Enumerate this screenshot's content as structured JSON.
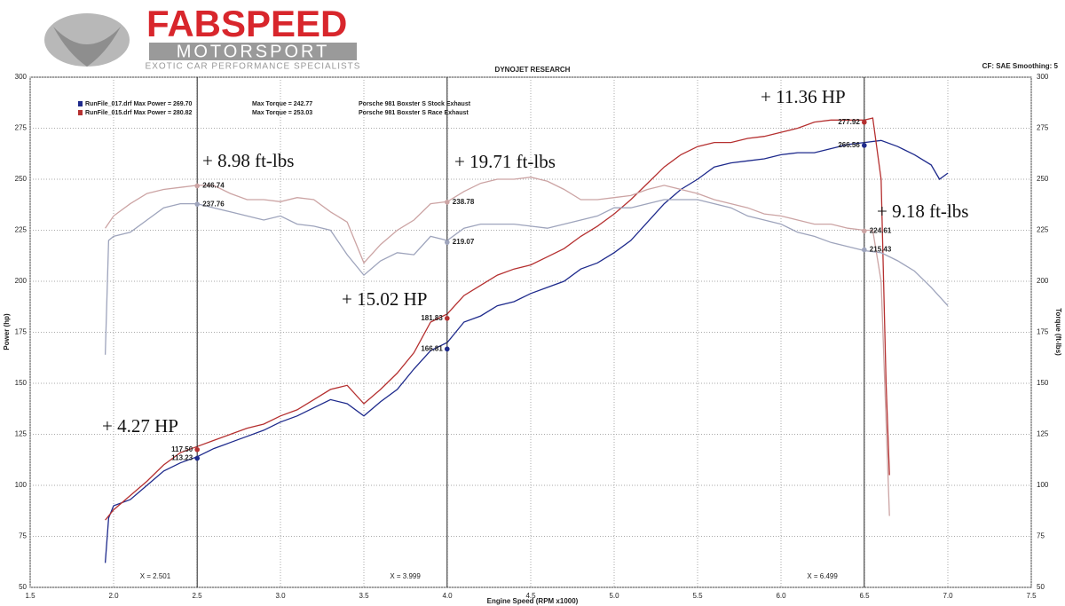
{
  "header": {
    "brand": "FABSPEED",
    "sub": "MOTORSPORT",
    "tagline": "EXOTIC CAR PERFORMANCE SPECIALISTS"
  },
  "chart_data": {
    "type": "line",
    "title": "DYNOJET RESEARCH",
    "settings_text": "CF: SAE  Smoothing: 5",
    "x_label": "Engine Speed (RPM x1000)",
    "y_label": "Power (hp)",
    "y2_label": "Torque (ft-lbs)",
    "xlim": [
      1.5,
      7.5
    ],
    "ylim": [
      50,
      300
    ],
    "y2lim": [
      50,
      300
    ],
    "grid": true,
    "xticks": [
      1.5,
      {
        "value": 2,
        "label": "2.0"
      },
      2.5,
      {
        "value": 3,
        "label": "3.0"
      },
      3.5,
      {
        "value": 4,
        "label": "4.0"
      },
      4.5,
      {
        "value": 5,
        "label": "5.0"
      },
      5.5,
      {
        "value": 6,
        "label": "6.0"
      },
      6.5,
      {
        "value": 7,
        "label": "7.0"
      },
      7.5
    ],
    "yticks": [
      50,
      75,
      100,
      125,
      150,
      175,
      200,
      225,
      250,
      275,
      300
    ],
    "y2ticks": [
      50,
      75,
      100,
      125,
      150,
      175,
      200,
      225,
      250,
      275,
      300
    ],
    "legend": [
      [
        "RunFile_017.drf Max Power = 269.70",
        "Max Torque = 242.77",
        "Porsche 981 Boxster S Stock Exhaust"
      ],
      [
        "RunFile_015.drf Max Power = 280.82",
        "Max Torque = 253.03",
        "Porsche 981 Boxster S Race Exhaust"
      ]
    ],
    "series": [
      {
        "color": "#1e2a8c",
        "x": [
          1.95,
          1.97,
          2.0,
          2.1,
          2.2,
          2.3,
          2.4,
          2.5,
          2.6,
          2.7,
          2.8,
          2.9,
          3.0,
          3.1,
          3.2,
          3.3,
          3.4,
          3.5,
          3.6,
          3.7,
          3.8,
          3.9,
          4.0,
          4.1,
          4.2,
          4.3,
          4.4,
          4.5,
          4.6,
          4.7,
          4.8,
          4.9,
          5.0,
          5.1,
          5.2,
          5.3,
          5.4,
          5.5,
          5.6,
          5.7,
          5.8,
          5.9,
          6.0,
          6.1,
          6.2,
          6.3,
          6.4,
          6.5,
          6.6,
          6.7,
          6.8,
          6.9,
          6.95,
          7.0
        ],
        "values": [
          62,
          84,
          90,
          93,
          100,
          107,
          111,
          114,
          118,
          121,
          124,
          127,
          131,
          134,
          138,
          142,
          140,
          134,
          141,
          147,
          157,
          166,
          170,
          180,
          183,
          188,
          190,
          194,
          197,
          200,
          206,
          209,
          214,
          220,
          229,
          238,
          245,
          250,
          256,
          258,
          259,
          260,
          262,
          263,
          263,
          265,
          267,
          268,
          269,
          266,
          262,
          257,
          250,
          253
        ]
      },
      {
        "color": "#b53030",
        "x": [
          1.95,
          2.0,
          2.1,
          2.2,
          2.3,
          2.4,
          2.5,
          2.6,
          2.7,
          2.8,
          2.9,
          3.0,
          3.1,
          3.2,
          3.3,
          3.4,
          3.5,
          3.6,
          3.7,
          3.8,
          3.9,
          4.0,
          4.1,
          4.2,
          4.3,
          4.4,
          4.5,
          4.6,
          4.7,
          4.8,
          4.9,
          5.0,
          5.1,
          5.2,
          5.3,
          5.4,
          5.5,
          5.6,
          5.7,
          5.8,
          5.9,
          6.0,
          6.1,
          6.2,
          6.3,
          6.4,
          6.5,
          6.55,
          6.6,
          6.63,
          6.65
        ],
        "values": [
          83,
          88,
          95,
          102,
          110,
          116,
          119,
          122,
          125,
          128,
          130,
          134,
          137,
          142,
          147,
          149,
          140,
          147,
          155,
          165,
          180,
          184,
          193,
          198,
          203,
          206,
          208,
          212,
          216,
          222,
          227,
          233,
          240,
          248,
          256,
          262,
          266,
          268,
          268,
          270,
          271,
          273,
          275,
          278,
          279,
          279,
          279,
          280,
          250,
          150,
          105
        ]
      },
      {
        "color": "#9ea4bc",
        "axis": "y2",
        "x": [
          1.95,
          1.97,
          2.0,
          2.1,
          2.2,
          2.3,
          2.4,
          2.5,
          2.6,
          2.7,
          2.8,
          2.9,
          3.0,
          3.1,
          3.2,
          3.3,
          3.4,
          3.5,
          3.6,
          3.7,
          3.8,
          3.9,
          4.0,
          4.1,
          4.2,
          4.3,
          4.4,
          4.5,
          4.6,
          4.7,
          4.8,
          4.9,
          5.0,
          5.1,
          5.2,
          5.3,
          5.4,
          5.5,
          5.6,
          5.7,
          5.8,
          5.9,
          6.0,
          6.1,
          6.2,
          6.3,
          6.4,
          6.5,
          6.6,
          6.7,
          6.8,
          6.9,
          7.0
        ],
        "values": [
          164,
          220,
          222,
          224,
          230,
          236,
          238,
          238,
          236,
          234,
          232,
          230,
          232,
          228,
          227,
          225,
          213,
          203,
          210,
          214,
          213,
          222,
          220,
          226,
          228,
          228,
          228,
          227,
          226,
          228,
          230,
          232,
          236,
          236,
          238,
          240,
          240,
          240,
          238,
          236,
          232,
          230,
          228,
          224,
          222,
          219,
          217,
          215,
          214,
          210,
          205,
          197,
          188
        ]
      },
      {
        "color": "#cca4a4",
        "axis": "y2",
        "x": [
          1.95,
          2.0,
          2.1,
          2.2,
          2.3,
          2.4,
          2.5,
          2.6,
          2.7,
          2.8,
          2.9,
          3.0,
          3.1,
          3.2,
          3.3,
          3.4,
          3.5,
          3.6,
          3.7,
          3.8,
          3.9,
          4.0,
          4.1,
          4.2,
          4.3,
          4.4,
          4.5,
          4.6,
          4.7,
          4.8,
          4.9,
          5.0,
          5.1,
          5.2,
          5.3,
          5.4,
          5.5,
          5.6,
          5.7,
          5.8,
          5.9,
          6.0,
          6.1,
          6.2,
          6.3,
          6.4,
          6.5,
          6.55,
          6.6,
          6.65
        ],
        "values": [
          226,
          232,
          238,
          243,
          245,
          246,
          247,
          247,
          243,
          240,
          240,
          239,
          241,
          240,
          234,
          229,
          209,
          218,
          225,
          230,
          238,
          239,
          244,
          248,
          250,
          250,
          251,
          249,
          245,
          240,
          240,
          241,
          242,
          245,
          247,
          245,
          243,
          240,
          238,
          236,
          233,
          232,
          230,
          228,
          228,
          226,
          225,
          225,
          200,
          85
        ]
      }
    ],
    "cursors": [
      {
        "x": {
          "value": 2.501,
          "label": "X = 2.501"
        },
        "values": [
          113.23,
          117.5,
          237.76,
          246.74
        ],
        "value_labels": [
          "113.23",
          "117.50",
          "237.76",
          "246.74"
        ]
      },
      {
        "x": {
          "value": 3.999,
          "label": "X = 3.999"
        },
        "values": [
          166.81,
          181.83,
          219.07,
          238.78
        ],
        "value_labels": [
          "166.81",
          "181.83",
          "219.07",
          "238.78"
        ]
      },
      {
        "x": {
          "value": 6.499,
          "label": "X = 6.499"
        },
        "values": [
          266.56,
          277.92,
          215.43,
          224.61
        ],
        "value_labels": [
          "266.56",
          "277.92",
          "215.43",
          "224.61"
        ]
      }
    ],
    "annotations": [
      "+ 4.27 HP",
      "+ 8.98 ft-lbs",
      "+ 15.02 HP",
      "+ 19.71 ft-lbs",
      "+ 11.36 HP",
      "+ 9.18 ft-lbs"
    ]
  }
}
